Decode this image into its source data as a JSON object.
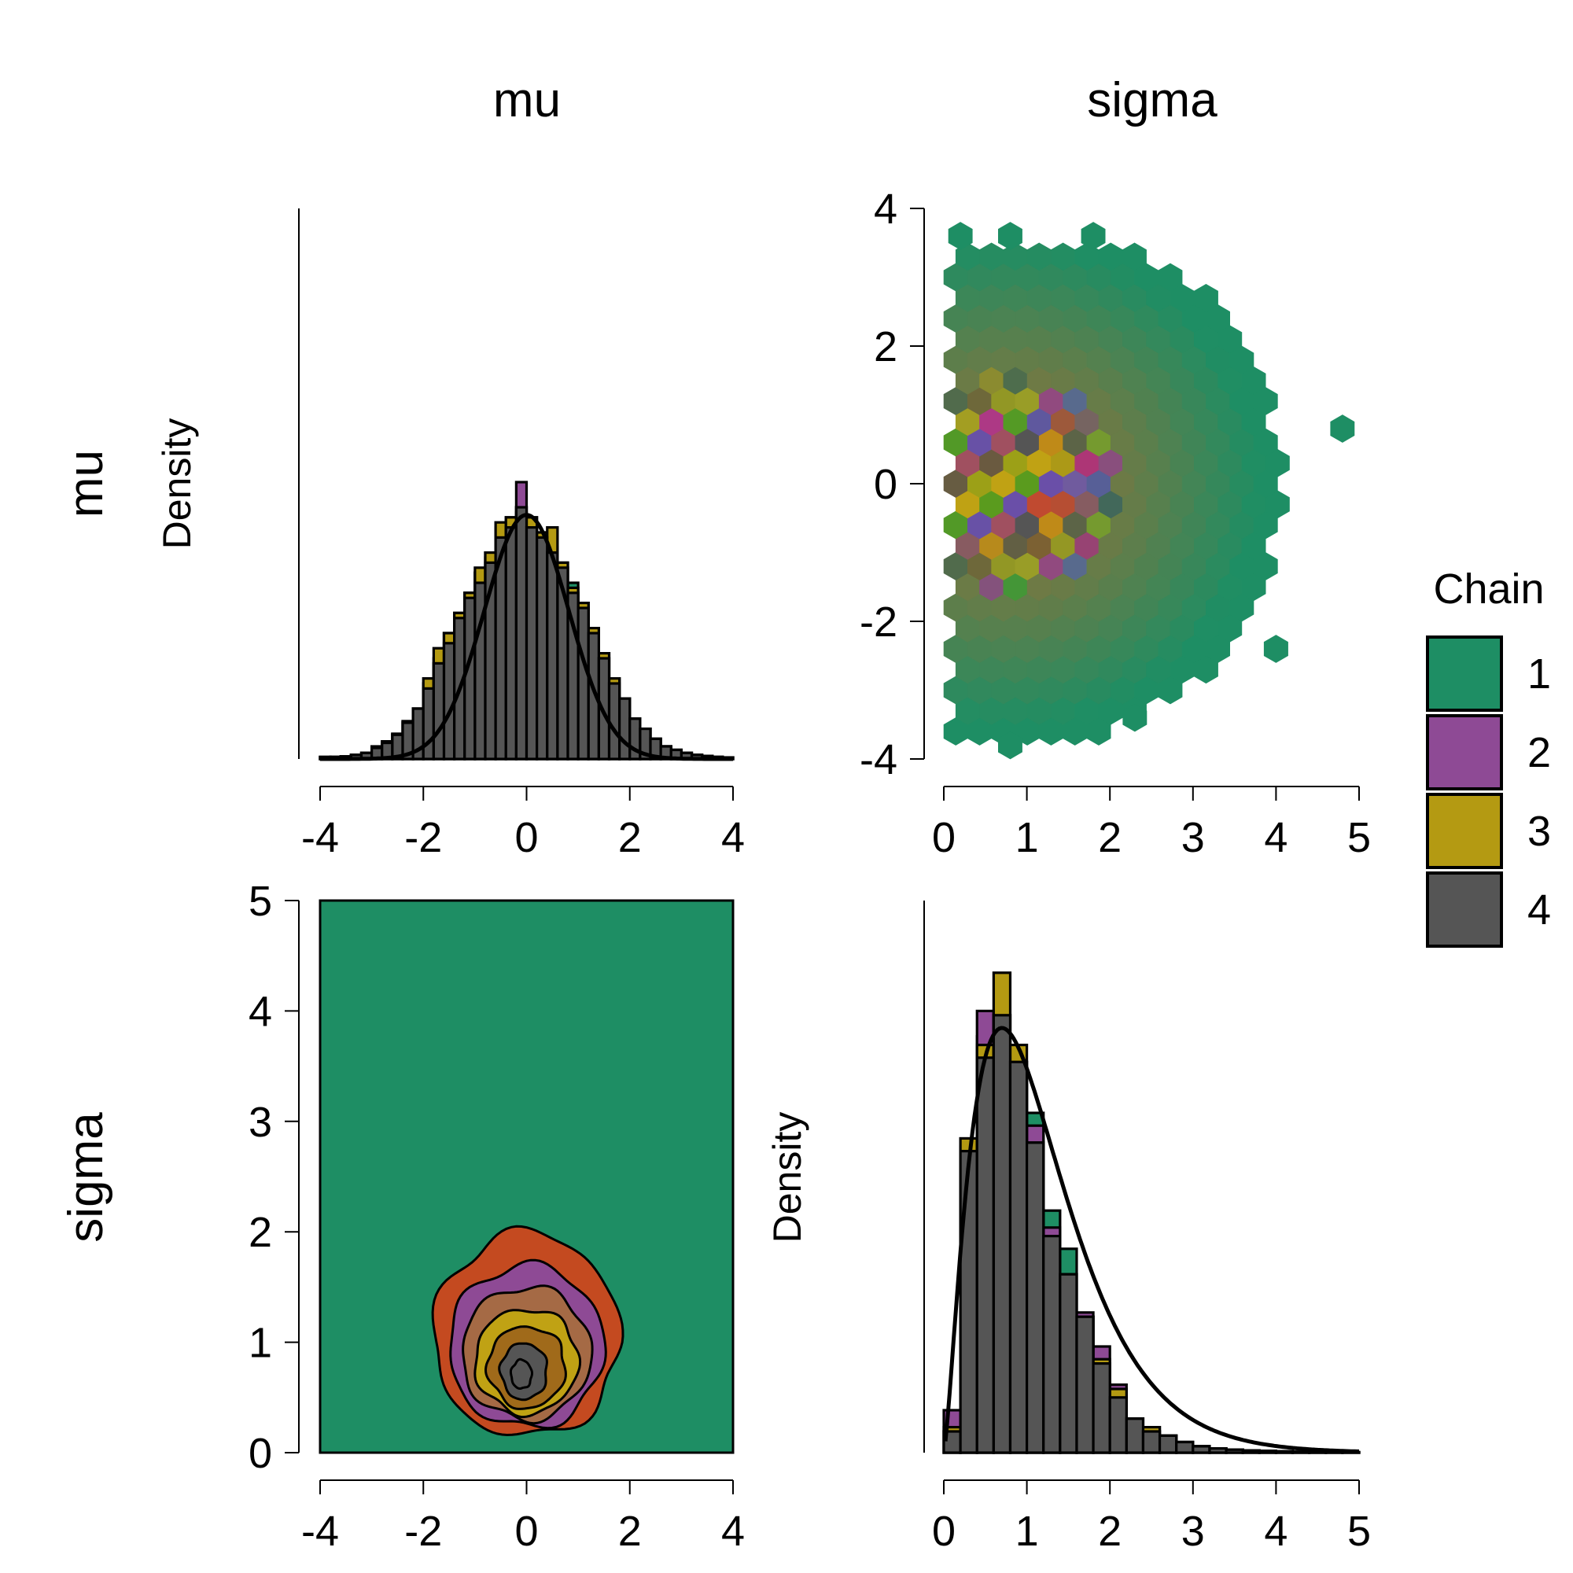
{
  "colors": {
    "chain1": "#1E8E64",
    "chain2": "#8E4A95",
    "chain3": "#B49A12",
    "chain4": "#555555",
    "contour_levels": [
      "#1E8E64",
      "#C44A20",
      "#8E4A95",
      "#A56A45",
      "#C0A214",
      "#A06A1A",
      "#555555"
    ]
  },
  "column_titles": [
    "mu",
    "sigma"
  ],
  "row_titles": [
    "mu",
    "sigma"
  ],
  "legend": {
    "title": "Chain",
    "items": [
      "1",
      "2",
      "3",
      "4"
    ]
  },
  "chart_data": [
    {
      "panel": "mu-mu",
      "type": "bar",
      "title": "",
      "xlabel": "",
      "ylabel": "Density",
      "xlim": [
        -4,
        4
      ],
      "xticks": [
        "-4",
        "-2",
        "0",
        "2",
        "4"
      ],
      "bin_start": -4.0,
      "bin_width": 0.2,
      "series": [
        {
          "name": "1",
          "values": [
            0.004,
            0.004,
            0.004,
            0.008,
            0.012,
            0.025,
            0.035,
            0.05,
            0.075,
            0.1,
            0.15,
            0.2,
            0.25,
            0.29,
            0.33,
            0.37,
            0.41,
            0.46,
            0.48,
            0.5,
            0.48,
            0.45,
            0.42,
            0.39,
            0.35,
            0.31,
            0.26,
            0.21,
            0.16,
            0.12,
            0.08,
            0.06,
            0.04,
            0.025,
            0.018,
            0.012,
            0.008,
            0.006,
            0.004,
            0.003
          ]
        },
        {
          "name": "2",
          "values": [
            0.003,
            0.004,
            0.005,
            0.008,
            0.012,
            0.022,
            0.032,
            0.048,
            0.072,
            0.1,
            0.14,
            0.19,
            0.25,
            0.29,
            0.33,
            0.37,
            0.4,
            0.46,
            0.47,
            0.55,
            0.46,
            0.44,
            0.41,
            0.38,
            0.33,
            0.3,
            0.25,
            0.2,
            0.16,
            0.12,
            0.08,
            0.06,
            0.04,
            0.025,
            0.018,
            0.012,
            0.008,
            0.006,
            0.004,
            0.003
          ]
        },
        {
          "name": "3",
          "values": [
            0.004,
            0.004,
            0.005,
            0.008,
            0.012,
            0.024,
            0.034,
            0.05,
            0.075,
            0.1,
            0.16,
            0.22,
            0.25,
            0.29,
            0.33,
            0.38,
            0.41,
            0.47,
            0.48,
            0.49,
            0.48,
            0.45,
            0.46,
            0.39,
            0.34,
            0.31,
            0.26,
            0.21,
            0.16,
            0.12,
            0.08,
            0.06,
            0.04,
            0.025,
            0.018,
            0.012,
            0.008,
            0.006,
            0.004,
            0.003
          ]
        },
        {
          "name": "4",
          "values": [
            0.004,
            0.004,
            0.005,
            0.008,
            0.012,
            0.022,
            0.032,
            0.048,
            0.072,
            0.1,
            0.14,
            0.19,
            0.23,
            0.28,
            0.32,
            0.35,
            0.39,
            0.44,
            0.46,
            0.5,
            0.46,
            0.44,
            0.41,
            0.38,
            0.33,
            0.3,
            0.25,
            0.2,
            0.15,
            0.12,
            0.08,
            0.06,
            0.04,
            0.025,
            0.018,
            0.012,
            0.008,
            0.006,
            0.004,
            0.003
          ]
        }
      ],
      "density_curve": {
        "name": "normal",
        "mean": 0.0,
        "sd": 0.82,
        "peak": 0.485
      }
    },
    {
      "panel": "sigma-mu",
      "type": "heatmap",
      "subtype": "hexbin",
      "xlabel": "",
      "ylabel": "",
      "xlim": [
        0,
        5
      ],
      "ylim": [
        -4,
        4
      ],
      "xticks": [
        "0",
        "1",
        "2",
        "3",
        "4",
        "5"
      ],
      "yticks": [
        "-4",
        "-2",
        "0",
        "2",
        "4"
      ],
      "description": "hexagonal bins of sigma (x) vs mu (y), colored by chain mixture density",
      "high_density_center": {
        "sigma": 0.8,
        "mu": 0.0
      },
      "isolated_bins": [
        {
          "sigma": 0.2,
          "mu": 3.6
        },
        {
          "sigma": 0.8,
          "mu": 3.6
        },
        {
          "sigma": 1.8,
          "mu": 3.6
        },
        {
          "sigma": 4.8,
          "mu": 0.8
        },
        {
          "sigma": 4.0,
          "mu": -2.4
        },
        {
          "sigma": 2.3,
          "mu": -3.4
        },
        {
          "sigma": 0.8,
          "mu": -3.8
        }
      ]
    },
    {
      "panel": "mu-sigma",
      "type": "heatmap",
      "subtype": "filled-contour",
      "xlabel": "",
      "ylabel": "",
      "xlim": [
        -4,
        4
      ],
      "ylim": [
        0,
        5
      ],
      "xticks": [
        "-4",
        "-2",
        "0",
        "2",
        "4"
      ],
      "yticks": [
        "0",
        "1",
        "2",
        "3",
        "4",
        "5"
      ],
      "mode": {
        "mu": -0.1,
        "sigma": 0.7
      },
      "contour_levels": [
        {
          "level": 1,
          "cx": 0.0,
          "cy": 1.0,
          "rx": 1.8,
          "ry_up": 1.0,
          "ry_down": 0.85
        },
        {
          "level": 2,
          "cx": 0.0,
          "cy": 0.95,
          "rx": 1.5,
          "ry_up": 0.75,
          "ry_down": 0.72
        },
        {
          "level": 3,
          "cx": 0.0,
          "cy": 0.9,
          "rx": 1.25,
          "ry_up": 0.6,
          "ry_down": 0.6
        },
        {
          "level": 4,
          "cx": 0.0,
          "cy": 0.85,
          "rx": 1.0,
          "ry_up": 0.45,
          "ry_down": 0.5
        },
        {
          "level": 5,
          "cx": 0.0,
          "cy": 0.8,
          "rx": 0.75,
          "ry_up": 0.34,
          "ry_down": 0.4
        },
        {
          "level": 6,
          "cx": -0.05,
          "cy": 0.75,
          "rx": 0.45,
          "ry_up": 0.24,
          "ry_down": 0.27
        },
        {
          "level": 7,
          "cx": -0.1,
          "cy": 0.7,
          "rx": 0.2,
          "ry_up": 0.14,
          "ry_down": 0.12
        }
      ]
    },
    {
      "panel": "sigma-sigma",
      "type": "bar",
      "title": "",
      "xlabel": "",
      "ylabel": "Density",
      "xlim": [
        0,
        5
      ],
      "xticks": [
        "0",
        "1",
        "2",
        "3",
        "4",
        "5"
      ],
      "bin_start": 0.0,
      "bin_width": 0.2,
      "series": [
        {
          "name": "1",
          "values": [
            0.05,
            0.71,
            0.98,
            1.03,
            0.92,
            0.8,
            0.57,
            0.48,
            0.32,
            0.21,
            0.13,
            0.08,
            0.05,
            0.04,
            0.025,
            0.015,
            0.01,
            0.007,
            0.005,
            0.004,
            0.003,
            0.002,
            0.002,
            0.001,
            0.001
          ]
        },
        {
          "name": "2",
          "values": [
            0.1,
            0.72,
            1.04,
            1.03,
            0.87,
            0.77,
            0.53,
            0.42,
            0.33,
            0.25,
            0.16,
            0.08,
            0.06,
            0.04,
            0.025,
            0.015,
            0.01,
            0.007,
            0.005,
            0.004,
            0.003,
            0.002,
            0.002,
            0.001,
            0.001
          ]
        },
        {
          "name": "3",
          "values": [
            0.06,
            0.74,
            0.96,
            1.13,
            0.96,
            0.73,
            0.51,
            0.42,
            0.32,
            0.22,
            0.15,
            0.08,
            0.06,
            0.04,
            0.025,
            0.015,
            0.01,
            0.007,
            0.005,
            0.004,
            0.003,
            0.002,
            0.002,
            0.001,
            0.001
          ]
        },
        {
          "name": "4",
          "values": [
            0.05,
            0.71,
            0.93,
            1.03,
            0.92,
            0.73,
            0.51,
            0.42,
            0.32,
            0.21,
            0.13,
            0.08,
            0.05,
            0.04,
            0.025,
            0.015,
            0.01,
            0.007,
            0.005,
            0.004,
            0.003,
            0.002,
            0.002,
            0.001,
            0.001
          ]
        }
      ],
      "density_curve": {
        "name": "gamma-like",
        "mode": 0.7,
        "peak": 1.0,
        "scale": 0.5
      }
    }
  ]
}
